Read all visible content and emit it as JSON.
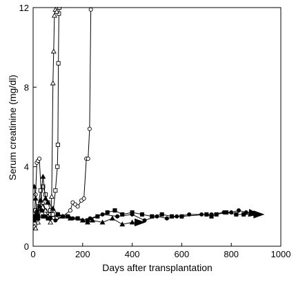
{
  "chart_data": {
    "type": "line",
    "xlabel": "Days after transplantation",
    "ylabel": "Serum creatinine (mg/dl)",
    "xlim": [
      0,
      1000
    ],
    "ylim": [
      0,
      12
    ],
    "x_ticks": [
      0,
      200,
      400,
      600,
      800,
      1000
    ],
    "y_ticks": [
      0,
      4,
      8,
      12
    ],
    "grid": false,
    "series": [
      {
        "marker": "open-circle",
        "points": [
          [
            5,
            1.4
          ],
          [
            10,
            2.6
          ],
          [
            15,
            4.2
          ],
          [
            20,
            4.3
          ],
          [
            25,
            4.4
          ],
          [
            35,
            2.2
          ],
          [
            50,
            1.8
          ],
          [
            70,
            1.6
          ],
          [
            95,
            1.4
          ],
          [
            120,
            1.5
          ],
          [
            150,
            1.8
          ],
          [
            160,
            2.2
          ],
          [
            170,
            2.1
          ],
          [
            180,
            2.0
          ],
          [
            195,
            2.3
          ],
          [
            205,
            2.4
          ],
          [
            215,
            4.4
          ],
          [
            222,
            4.4
          ],
          [
            228,
            5.9
          ],
          [
            233,
            11.9
          ]
        ]
      },
      {
        "marker": "open-square",
        "points": [
          [
            5,
            1.5
          ],
          [
            10,
            1.8
          ],
          [
            20,
            2.0
          ],
          [
            30,
            2.8
          ],
          [
            40,
            3.0
          ],
          [
            50,
            2.6
          ],
          [
            60,
            2.2
          ],
          [
            70,
            1.8
          ],
          [
            80,
            1.6
          ],
          [
            90,
            2.8
          ],
          [
            98,
            4.0
          ],
          [
            100,
            5.1
          ],
          [
            102,
            9.2
          ],
          [
            104,
            11.7
          ],
          [
            106,
            12.0
          ]
        ]
      },
      {
        "marker": "open-triangle",
        "points": [
          [
            5,
            1.0
          ],
          [
            10,
            0.9
          ],
          [
            20,
            1.2
          ],
          [
            30,
            1.8
          ],
          [
            40,
            2.2
          ],
          [
            50,
            1.8
          ],
          [
            60,
            1.5
          ],
          [
            70,
            1.2
          ],
          [
            75,
            2.5
          ],
          [
            80,
            8.2
          ],
          [
            83,
            9.8
          ],
          [
            86,
            11.6
          ],
          [
            90,
            11.9
          ],
          [
            95,
            11.8
          ]
        ]
      },
      {
        "marker": "filled-triangle",
        "arrow_end": true,
        "points": [
          [
            5,
            3.0
          ],
          [
            10,
            2.4
          ],
          [
            15,
            1.8
          ],
          [
            20,
            1.6
          ],
          [
            30,
            2.3
          ],
          [
            40,
            3.5
          ],
          [
            50,
            2.4
          ],
          [
            60,
            2.2
          ],
          [
            80,
            1.9
          ],
          [
            100,
            1.6
          ],
          [
            120,
            1.5
          ],
          [
            150,
            1.4
          ],
          [
            200,
            1.3
          ],
          [
            220,
            1.2
          ],
          [
            240,
            1.3
          ],
          [
            280,
            1.2
          ],
          [
            320,
            1.4
          ],
          [
            360,
            1.1
          ],
          [
            400,
            1.2
          ],
          [
            450,
            1.2
          ]
        ]
      },
      {
        "marker": "filled-square",
        "arrow_end": true,
        "points": [
          [
            5,
            1.3
          ],
          [
            20,
            1.4
          ],
          [
            40,
            1.5
          ],
          [
            60,
            1.4
          ],
          [
            100,
            1.6
          ],
          [
            140,
            1.5
          ],
          [
            180,
            1.4
          ],
          [
            220,
            1.3
          ],
          [
            260,
            1.5
          ],
          [
            300,
            1.7
          ],
          [
            330,
            1.8
          ],
          [
            360,
            1.6
          ],
          [
            400,
            1.7
          ],
          [
            440,
            1.6
          ],
          [
            480,
            1.5
          ],
          [
            520,
            1.6
          ],
          [
            560,
            1.5
          ],
          [
            600,
            1.5
          ],
          [
            700,
            1.6
          ],
          [
            720,
            1.5
          ],
          [
            740,
            1.6
          ],
          [
            780,
            1.7
          ],
          [
            820,
            1.6
          ],
          [
            850,
            1.6
          ],
          [
            930,
            1.6
          ]
        ]
      },
      {
        "marker": "filled-circle",
        "arrow_end": true,
        "points": [
          [
            5,
            1.5
          ],
          [
            15,
            1.6
          ],
          [
            25,
            2.0
          ],
          [
            35,
            1.8
          ],
          [
            50,
            1.5
          ],
          [
            70,
            1.4
          ],
          [
            90,
            1.3
          ],
          [
            120,
            1.5
          ],
          [
            160,
            1.4
          ],
          [
            200,
            1.3
          ],
          [
            230,
            1.4
          ],
          [
            280,
            1.6
          ],
          [
            340,
            1.5
          ],
          [
            400,
            1.6
          ],
          [
            450,
            1.3
          ],
          [
            500,
            1.5
          ],
          [
            540,
            1.4
          ],
          [
            580,
            1.5
          ],
          [
            630,
            1.6
          ],
          [
            680,
            1.6
          ],
          [
            720,
            1.6
          ],
          [
            770,
            1.7
          ],
          [
            800,
            1.7
          ],
          [
            830,
            1.8
          ],
          [
            860,
            1.7
          ],
          [
            910,
            1.6
          ]
        ]
      }
    ]
  }
}
